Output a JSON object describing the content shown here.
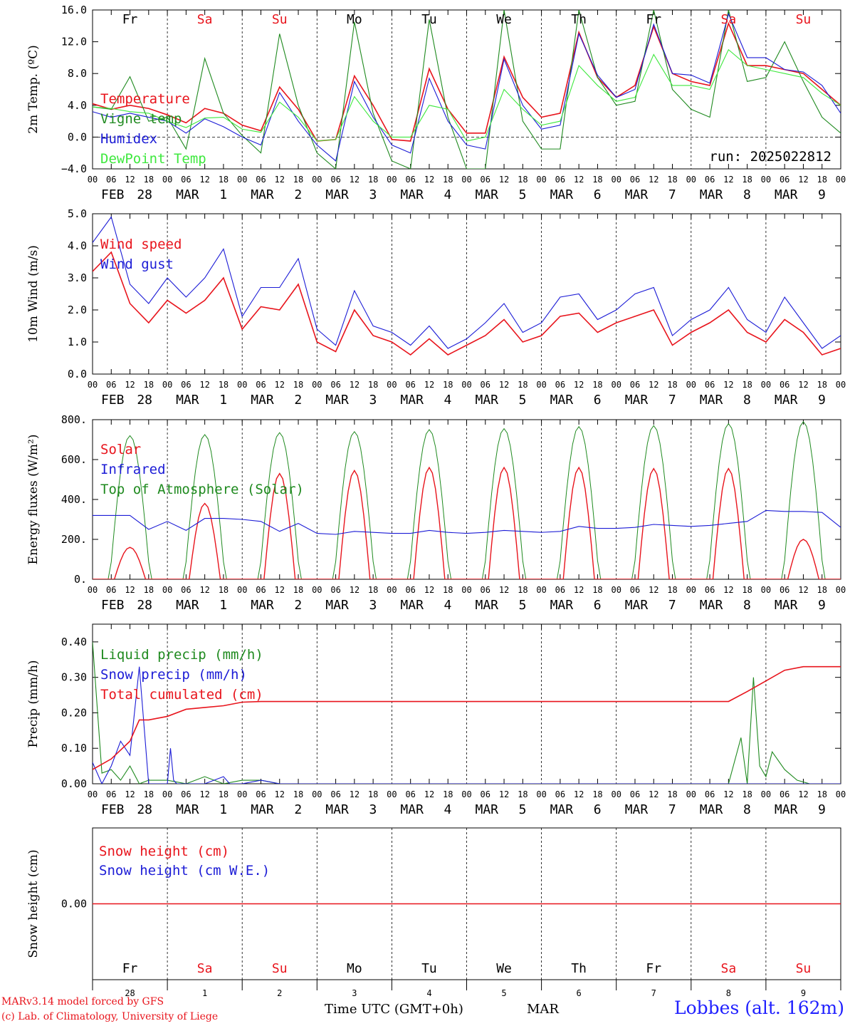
{
  "colors": {
    "red": "#e8141c",
    "green": "#1f8a1f",
    "blue": "#1c1cd6",
    "lightgreen": "#3ee83e",
    "black": "#000000"
  },
  "days": [
    "Fr",
    "Sa",
    "Su",
    "Mo",
    "Tu",
    "We",
    "Th",
    "Fr",
    "Sa",
    "Su"
  ],
  "weekend_days": [
    "Sa",
    "Su"
  ],
  "date_labels": [
    [
      "FEB",
      "28"
    ],
    [
      "MAR",
      "1"
    ],
    [
      "MAR",
      "2"
    ],
    [
      "MAR",
      "3"
    ],
    [
      "MAR",
      "4"
    ],
    [
      "MAR",
      "5"
    ],
    [
      "MAR",
      "6"
    ],
    [
      "MAR",
      "7"
    ],
    [
      "MAR",
      "8"
    ],
    [
      "MAR",
      "9"
    ]
  ],
  "hour_labels": [
    "00",
    "06",
    "12",
    "18"
  ],
  "last_hour_label": "00",
  "bottom_dates": [
    "28",
    "1",
    "2",
    "3",
    "4",
    "5",
    "6",
    "7",
    "8",
    "9"
  ],
  "footer": {
    "credit1": "MARv3.14 model forced by GFS",
    "credit2": "(c) Lab. of Climatology, University of Liege",
    "time_label": "Time UTC (GMT+0h)",
    "month_label": "MAR",
    "station": "Lobbes (alt. 162m)"
  },
  "chart_data": [
    {
      "type": "line",
      "ylabel": "2m Temp. (ºC)",
      "ylim": [
        -4,
        16
      ],
      "yticks": [
        "-4.0",
        "0.0",
        "4.0",
        "8.0",
        "12.0",
        "16.0"
      ],
      "annotation": "run: 2025022812",
      "x_unit": "hours since FEB 28 00 UTC",
      "series": [
        {
          "name": "Temperature",
          "color": "red",
          "x": [
            0,
            6,
            12,
            18,
            24,
            30,
            36,
            42,
            48,
            54,
            60,
            66,
            72,
            78,
            84,
            90,
            96,
            102,
            108,
            114,
            120,
            126,
            132,
            138,
            144,
            150,
            156,
            162,
            168,
            174,
            180,
            186,
            192,
            198,
            204,
            210,
            216,
            222,
            228,
            234,
            240
          ],
          "y": [
            4.2,
            3.5,
            4.0,
            3.6,
            2.8,
            1.8,
            3.6,
            3.0,
            1.5,
            0.8,
            6.3,
            3.5,
            -0.5,
            -0.3,
            7.7,
            4.0,
            -0.3,
            -0.5,
            8.6,
            3.5,
            0.5,
            0.5,
            10.1,
            5.0,
            2.5,
            3.0,
            13.2,
            7.5,
            5.0,
            6.5,
            13.9,
            8.0,
            7.0,
            6.5,
            14.3,
            9.0,
            9.0,
            8.5,
            8.0,
            6.0,
            4.0
          ]
        },
        {
          "name": "Vigne temp",
          "color": "green",
          "x": [
            0,
            6,
            12,
            18,
            24,
            30,
            36,
            42,
            48,
            54,
            60,
            66,
            72,
            78,
            84,
            90,
            96,
            102,
            108,
            114,
            120,
            126,
            132,
            138,
            144,
            150,
            156,
            162,
            168,
            174,
            180,
            186,
            192,
            198,
            204,
            210,
            216,
            222,
            228,
            234,
            240
          ],
          "y": [
            3.8,
            3.5,
            7.6,
            2.0,
            2.5,
            -1.5,
            9.9,
            3.0,
            0.2,
            -2.0,
            13.0,
            4.0,
            -2.0,
            -4.0,
            14.5,
            3.0,
            -3.0,
            -4.0,
            14.8,
            2.5,
            -4.0,
            -4.0,
            16.0,
            2.0,
            -1.5,
            -1.5,
            16.0,
            7.5,
            4.0,
            4.5,
            16.0,
            6.0,
            3.5,
            2.5,
            16.0,
            7.0,
            7.5,
            12.0,
            7.0,
            2.5,
            0.5
          ]
        },
        {
          "name": "Humidex",
          "color": "blue",
          "x": [
            0,
            6,
            12,
            18,
            24,
            30,
            36,
            42,
            48,
            54,
            60,
            66,
            72,
            78,
            84,
            90,
            96,
            102,
            108,
            114,
            120,
            126,
            132,
            138,
            144,
            150,
            156,
            162,
            168,
            174,
            180,
            186,
            192,
            198,
            204,
            210,
            216,
            222,
            228,
            234,
            240
          ],
          "y": [
            3.2,
            2.5,
            3.0,
            2.5,
            2.0,
            0.5,
            2.3,
            1.3,
            0.0,
            -1.0,
            5.6,
            2.0,
            -1.0,
            -3.0,
            7.0,
            2.5,
            -1.0,
            -2.0,
            7.4,
            2.0,
            -1.0,
            -1.5,
            9.8,
            4.0,
            1.0,
            1.5,
            13.0,
            7.8,
            5.0,
            6.0,
            14.2,
            8.0,
            7.8,
            6.8,
            15.5,
            10.0,
            10.0,
            8.5,
            8.2,
            6.5,
            3.0
          ]
        },
        {
          "name": "DewPoint Temp",
          "color": "lightgreen",
          "x": [
            0,
            6,
            12,
            18,
            24,
            30,
            36,
            42,
            48,
            54,
            60,
            66,
            72,
            78,
            84,
            90,
            96,
            102,
            108,
            114,
            120,
            126,
            132,
            138,
            144,
            150,
            156,
            162,
            168,
            174,
            180,
            186,
            192,
            198,
            204,
            210,
            216,
            222,
            228,
            234,
            240
          ],
          "y": [
            3.8,
            3.6,
            3.2,
            3.0,
            2.0,
            1.2,
            2.4,
            2.5,
            1.0,
            0.6,
            4.4,
            2.5,
            -0.5,
            -0.3,
            5.1,
            2.0,
            0.0,
            0.0,
            4.0,
            3.5,
            -0.5,
            0.0,
            6.0,
            3.5,
            1.5,
            2.0,
            9.0,
            6.5,
            4.5,
            5.0,
            10.4,
            6.5,
            6.5,
            6.0,
            11.0,
            9.0,
            8.5,
            8.0,
            7.5,
            5.5,
            4.0
          ]
        }
      ]
    },
    {
      "type": "line",
      "ylabel": "10m Wind (m/s)",
      "ylim": [
        0,
        5
      ],
      "yticks": [
        "0.0",
        "1.0",
        "2.0",
        "3.0",
        "4.0",
        "5.0"
      ],
      "x_unit": "hours since FEB 28 00 UTC",
      "series": [
        {
          "name": "Wind speed",
          "color": "red",
          "x": [
            0,
            6,
            12,
            18,
            24,
            30,
            36,
            42,
            48,
            54,
            60,
            66,
            72,
            78,
            84,
            90,
            96,
            102,
            108,
            114,
            120,
            126,
            132,
            138,
            144,
            150,
            156,
            162,
            168,
            174,
            180,
            186,
            192,
            198,
            204,
            210,
            216,
            222,
            228,
            234,
            240
          ],
          "y": [
            3.2,
            3.8,
            2.2,
            1.6,
            2.3,
            1.9,
            2.3,
            3.0,
            1.4,
            2.1,
            2.0,
            2.8,
            1.0,
            0.7,
            2.0,
            1.2,
            1.0,
            0.6,
            1.1,
            0.6,
            0.9,
            1.2,
            1.7,
            1.0,
            1.2,
            1.8,
            1.9,
            1.3,
            1.6,
            1.8,
            2.0,
            0.9,
            1.3,
            1.6,
            2.0,
            1.3,
            1.0,
            1.7,
            1.3,
            0.6,
            0.8
          ]
        },
        {
          "name": "Wind gust",
          "color": "blue",
          "x": [
            0,
            6,
            12,
            18,
            24,
            30,
            36,
            42,
            48,
            54,
            60,
            66,
            72,
            78,
            84,
            90,
            96,
            102,
            108,
            114,
            120,
            126,
            132,
            138,
            144,
            150,
            156,
            162,
            168,
            174,
            180,
            186,
            192,
            198,
            204,
            210,
            216,
            222,
            228,
            234,
            240
          ],
          "y": [
            4.1,
            4.9,
            2.8,
            2.2,
            3.0,
            2.4,
            3.0,
            3.9,
            1.8,
            2.7,
            2.7,
            3.6,
            1.4,
            0.9,
            2.6,
            1.5,
            1.3,
            0.9,
            1.5,
            0.8,
            1.1,
            1.6,
            2.2,
            1.3,
            1.6,
            2.4,
            2.5,
            1.7,
            2.0,
            2.5,
            2.7,
            1.2,
            1.7,
            2.0,
            2.7,
            1.7,
            1.3,
            2.4,
            1.6,
            0.8,
            1.2
          ]
        }
      ]
    },
    {
      "type": "line",
      "ylabel": "Energy fluxes (W/m²)",
      "ylim": [
        0,
        800
      ],
      "yticks": [
        "0.",
        "200.",
        "400.",
        "600.",
        "800."
      ],
      "x_unit": "hours since FEB 28 00 UTC",
      "day_peaks": {
        "Solar": [
          160,
          380,
          530,
          545,
          560,
          560,
          560,
          555,
          555,
          200
        ],
        "Top of Atmosphere (Solar)": [
          720,
          725,
          735,
          740,
          750,
          755,
          765,
          770,
          780,
          790
        ]
      },
      "series": [
        {
          "name": "Infrared",
          "color": "blue",
          "x": [
            0,
            6,
            12,
            18,
            24,
            30,
            36,
            42,
            48,
            54,
            60,
            66,
            72,
            78,
            84,
            90,
            96,
            102,
            108,
            114,
            120,
            126,
            132,
            138,
            144,
            150,
            156,
            162,
            168,
            174,
            180,
            186,
            192,
            198,
            204,
            210,
            216,
            222,
            228,
            234,
            240
          ],
          "y": [
            320,
            320,
            320,
            250,
            290,
            245,
            305,
            305,
            300,
            290,
            240,
            280,
            230,
            225,
            240,
            235,
            230,
            230,
            245,
            235,
            230,
            235,
            245,
            240,
            235,
            240,
            265,
            255,
            255,
            260,
            275,
            270,
            265,
            270,
            280,
            290,
            345,
            340,
            340,
            335,
            260
          ]
        }
      ]
    },
    {
      "type": "line",
      "ylabel": "Precip (mm/h)",
      "ylim": [
        0,
        0.45
      ],
      "yticks": [
        "0.00",
        "0.10",
        "0.20",
        "0.30",
        "0.40"
      ],
      "x_unit": "hours since FEB 28 00 UTC",
      "series": [
        {
          "name": "Liquid precip (mm/h)",
          "color": "green",
          "x": [
            0,
            3,
            6,
            9,
            12,
            15,
            18,
            24,
            30,
            36,
            42,
            48,
            54,
            60,
            66,
            72,
            204,
            208,
            210,
            212,
            214,
            216,
            218,
            222,
            226,
            230,
            240
          ],
          "y": [
            0.4,
            0.03,
            0.04,
            0.01,
            0.05,
            0.0,
            0.01,
            0.01,
            0.0,
            0.02,
            0.0,
            0.01,
            0.01,
            0.0,
            0.0,
            0.0,
            0.0,
            0.13,
            0.0,
            0.3,
            0.05,
            0.02,
            0.09,
            0.04,
            0.01,
            0.0,
            0.0
          ]
        },
        {
          "name": "Snow precip (mm/h)",
          "color": "blue",
          "x": [
            0,
            3,
            6,
            9,
            12,
            15,
            18,
            24,
            25,
            26,
            27,
            30,
            36,
            42,
            44,
            48,
            54,
            60,
            66,
            72,
            240
          ],
          "y": [
            0.06,
            0.0,
            0.05,
            0.12,
            0.08,
            0.33,
            0.0,
            0.0,
            0.1,
            0.01,
            0.0,
            0.0,
            0.0,
            0.02,
            0.0,
            0.0,
            0.01,
            0.0,
            0.0,
            0.0,
            0.0
          ]
        },
        {
          "name": "Total cumulated (cm)",
          "color": "red",
          "x": [
            0,
            6,
            12,
            15,
            18,
            24,
            30,
            36,
            42,
            48,
            54,
            60,
            72,
            204,
            210,
            216,
            222,
            228,
            240
          ],
          "y": [
            0.04,
            0.07,
            0.12,
            0.18,
            0.18,
            0.19,
            0.21,
            0.215,
            0.22,
            0.23,
            0.232,
            0.232,
            0.232,
            0.232,
            0.26,
            0.29,
            0.32,
            0.33,
            0.33
          ]
        }
      ]
    },
    {
      "type": "line",
      "ylabel": "Snow height (cm)",
      "ylim": [
        -1,
        1
      ],
      "yticks": [
        "0.00"
      ],
      "x_unit": "hours since FEB 28 00 UTC",
      "series": [
        {
          "name": "Snow height (cm)",
          "color": "red",
          "x": [
            0,
            240
          ],
          "y": [
            0,
            0
          ]
        },
        {
          "name": "Snow height (cm W.E.)",
          "color": "blue",
          "x": [],
          "y": []
        }
      ]
    }
  ]
}
